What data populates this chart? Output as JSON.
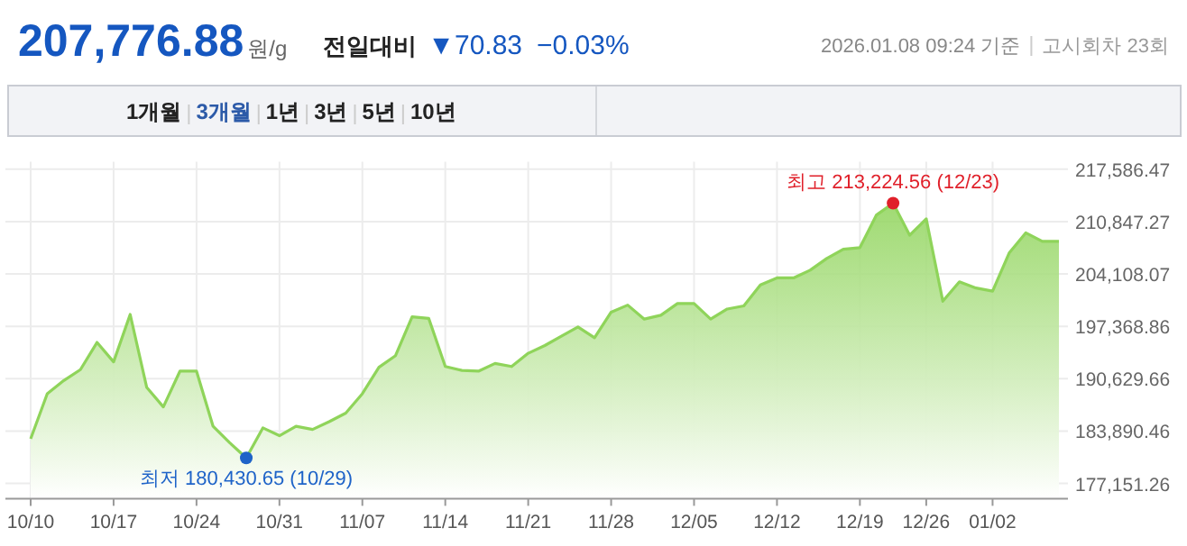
{
  "chart_data": {
    "type": "area",
    "title": "207,776.88",
    "annotations": [
      "원/g",
      "전일대비",
      "▼70.83",
      "−0.03%",
      "2026.01.08 09:24 기준",
      "고시회차 23회",
      "1개월",
      "3개월",
      "1년",
      "3년",
      "5년",
      "10년",
      {
        "text": "최저 180,430.65 (10/29)",
        "y": 180430.65
      },
      {
        "text": "최고 213,224.56 (12/23)",
        "y": 213224.56
      }
    ],
    "categories": [
      "10/10",
      null,
      null,
      null,
      null,
      "10/17",
      null,
      null,
      null,
      null,
      "10/24",
      null,
      null,
      null,
      null,
      "10/31",
      null,
      null,
      null,
      null,
      "11/07",
      null,
      null,
      null,
      null,
      "11/14",
      null,
      null,
      null,
      null,
      "11/21",
      null,
      null,
      null,
      null,
      "11/28",
      null,
      null,
      null,
      null,
      "12/05",
      null,
      null,
      null,
      null,
      "12/12",
      null,
      null,
      null,
      null,
      "12/19",
      null,
      null,
      null,
      "12/26",
      null,
      null,
      null,
      "01/02",
      null,
      null,
      null,
      null
    ],
    "series": [
      {
        "color": "#8fd45a",
        "values": [
          182900,
          188700,
          190400,
          191800,
          195300,
          192800,
          198900,
          189500,
          187000,
          191600,
          191600,
          184500,
          182400,
          180430.65,
          184300,
          183300,
          184500,
          184100,
          185100,
          186200,
          188700,
          192100,
          193600,
          198600,
          198400,
          192200,
          191700,
          191600,
          192600,
          192200,
          193900,
          194900,
          196100,
          197300,
          195900,
          199200,
          200100,
          198300,
          198800,
          200300,
          200300,
          198300,
          199600,
          200000,
          202700,
          203600,
          203600,
          204600,
          206100,
          207300,
          207500,
          211700,
          213224.56,
          209100,
          211200,
          200600,
          203100,
          202300,
          201900,
          206800,
          209400,
          208300,
          208300
        ]
      }
    ],
    "ylim": [
      175200,
      218100
    ],
    "yticks": [
      {
        "value": 177151.26,
        "label": "177,151.26"
      },
      {
        "value": 183890.46,
        "label": "183,890.46"
      },
      {
        "value": 190629.66,
        "label": "190,629.66"
      },
      {
        "value": 197368.86,
        "label": "197,368.86"
      },
      {
        "value": 204108.07,
        "label": "204,108.07"
      },
      {
        "value": 210847.27,
        "label": "210,847.27"
      },
      {
        "value": 217586.47,
        "label": "217,586.47"
      }
    ],
    "grid": true
  }
}
